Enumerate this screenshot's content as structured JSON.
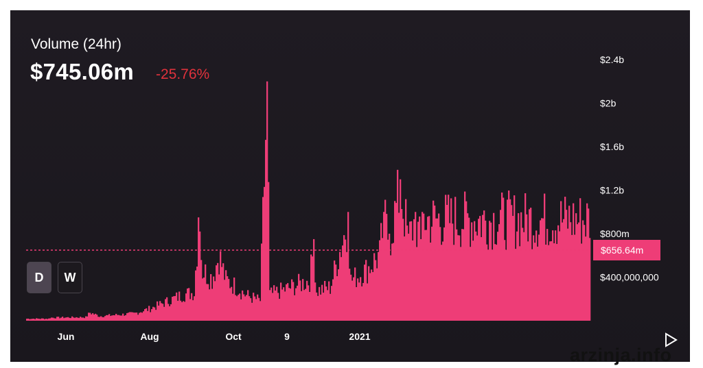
{
  "header": {
    "title": "Volume (24hr)",
    "value": "$745.06m",
    "change": "-25.76%"
  },
  "timeframe_buttons": [
    {
      "label": "D",
      "active": true
    },
    {
      "label": "W",
      "active": false
    }
  ],
  "colors": {
    "background": "#1c191f",
    "bars": "#ee3d77",
    "change_negative": "#e0323c",
    "text": "#ffffff"
  },
  "play_icon": "play-triangle-icon",
  "watermark": "arzinja.info",
  "chart_data": {
    "type": "bar",
    "title": "Volume (24hr)",
    "y_ticks": [
      "$400,000,000",
      "$800m",
      "$1.2b",
      "$1.6b",
      "$2b",
      "$2.4b"
    ],
    "y_tick_values": [
      400000000,
      800000000,
      1200000000,
      1600000000,
      2000000000,
      2400000000
    ],
    "x_ticks": [
      "Jun",
      "Aug",
      "Oct",
      "9",
      "2021"
    ],
    "x_tick_dates": [
      "2020-06-01",
      "2020-08-01",
      "2020-10-01",
      "2020-11-09",
      "2021-01-01"
    ],
    "current_value_label": "$656.64m",
    "current_value": 656640000,
    "ylim": [
      0,
      2400000000
    ],
    "grid": false,
    "series_points": [
      [
        "2020-05-03",
        20000000
      ],
      [
        "2020-05-19",
        20000000
      ],
      [
        "2020-05-20",
        30000000
      ],
      [
        "2020-06-15",
        35000000
      ],
      [
        "2020-06-18",
        80000000
      ],
      [
        "2020-06-25",
        45000000
      ],
      [
        "2020-07-10",
        60000000
      ],
      [
        "2020-07-20",
        70000000
      ],
      [
        "2020-07-27",
        100000000
      ],
      [
        "2020-08-01",
        120000000
      ],
      [
        "2020-08-15",
        200000000
      ],
      [
        "2020-08-25",
        260000000
      ],
      [
        "2020-09-02",
        280000000
      ],
      [
        "2020-09-05",
        950000000
      ],
      [
        "2020-09-06",
        820000000
      ],
      [
        "2020-09-08",
        500000000
      ],
      [
        "2020-09-15",
        420000000
      ],
      [
        "2020-09-20",
        650000000
      ],
      [
        "2020-09-25",
        400000000
      ],
      [
        "2020-10-01",
        350000000
      ],
      [
        "2020-10-10",
        250000000
      ],
      [
        "2020-10-20",
        200000000
      ],
      [
        "2020-10-25",
        2200000000
      ],
      [
        "2020-10-27",
        260000000
      ],
      [
        "2020-11-05",
        300000000
      ],
      [
        "2020-11-15",
        350000000
      ],
      [
        "2020-11-25",
        400000000
      ],
      [
        "2020-11-28",
        750000000
      ],
      [
        "2020-11-30",
        300000000
      ],
      [
        "2020-12-10",
        330000000
      ],
      [
        "2020-12-23",
        1000000000
      ],
      [
        "2020-12-25",
        400000000
      ],
      [
        "2021-01-05",
        500000000
      ],
      [
        "2021-01-15",
        650000000
      ],
      [
        "2021-01-18",
        1000000000
      ],
      [
        "2021-01-22",
        800000000
      ],
      [
        "2021-01-30",
        1300000000
      ],
      [
        "2021-02-05",
        800000000
      ],
      [
        "2021-02-10",
        1000000000
      ],
      [
        "2021-02-14",
        750000000
      ],
      [
        "2021-02-15",
        1000000000
      ]
    ]
  }
}
